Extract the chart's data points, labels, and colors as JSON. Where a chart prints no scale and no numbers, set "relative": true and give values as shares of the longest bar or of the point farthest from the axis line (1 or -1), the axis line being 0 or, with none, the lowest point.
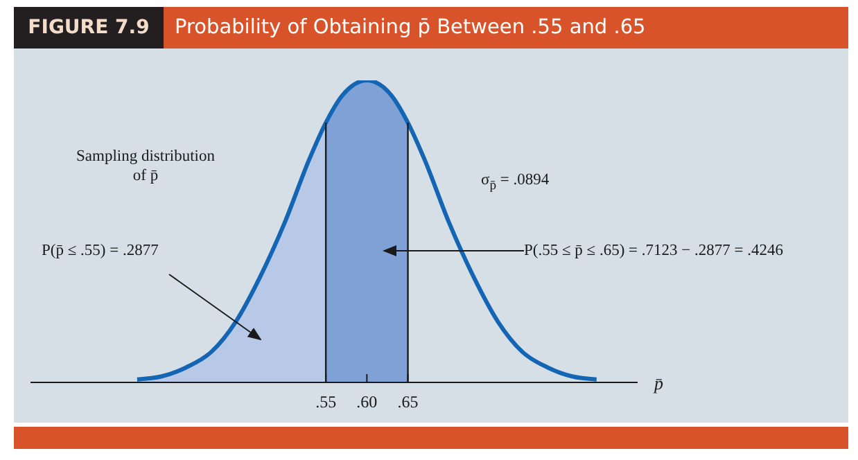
{
  "chart_data": {
    "type": "area",
    "subtitle": "FIGURE 7.9",
    "title": "Probability of Obtaining p̄ Between .55 and .65",
    "xlabel": "p̄",
    "relative": true,
    "marker": "none",
    "xlim": [
      0.19,
      0.93
    ],
    "xticks": [
      {
        "value": 0.55,
        "label": ".55"
      },
      {
        "value": 0.6,
        "label": ".60"
      },
      {
        "value": 0.65,
        "label": ".65"
      }
    ],
    "series": [
      {
        "color": "#b8c9e8",
        "x": [
          0.32,
          0.35,
          0.38,
          0.41,
          0.44,
          0.47,
          0.5,
          0.53,
          0.55
        ],
        "values": [
          0.01,
          0.02,
          0.05,
          0.1,
          0.2,
          0.35,
          0.53,
          0.74,
          0.86
        ]
      },
      {
        "color": "#7fa1d6",
        "x": [
          0.55,
          0.57,
          0.6,
          0.63,
          0.65
        ],
        "values": [
          0.86,
          0.95,
          1,
          0.95,
          0.86
        ]
      },
      {
        "type": "line",
        "color": "#1565b5",
        "x": [
          0.32,
          0.35,
          0.38,
          0.41,
          0.44,
          0.47,
          0.5,
          0.53,
          0.55,
          0.57,
          0.6,
          0.63,
          0.65,
          0.67,
          0.7,
          0.73,
          0.76,
          0.79,
          0.82,
          0.85,
          0.88
        ],
        "values": [
          0.01,
          0.02,
          0.05,
          0.1,
          0.2,
          0.35,
          0.53,
          0.74,
          0.86,
          0.95,
          1,
          0.95,
          0.86,
          0.74,
          0.53,
          0.35,
          0.2,
          0.1,
          0.05,
          0.02,
          0.01
        ]
      }
    ],
    "ref_lines": [
      {
        "axis": "x",
        "value": 0.55,
        "color": "#1a1a1a"
      },
      {
        "axis": "x",
        "value": 0.65,
        "color": "#1a1a1a"
      }
    ],
    "annotations": [
      "Sampling distribution of p̄",
      "σ$_{p̄}$ = .0894",
      "P(p̄ ≤ .55) = .2877",
      "P(.55 ≤ p̄ ≤ .65) = .7123 − .2877 = .4246"
    ]
  }
}
